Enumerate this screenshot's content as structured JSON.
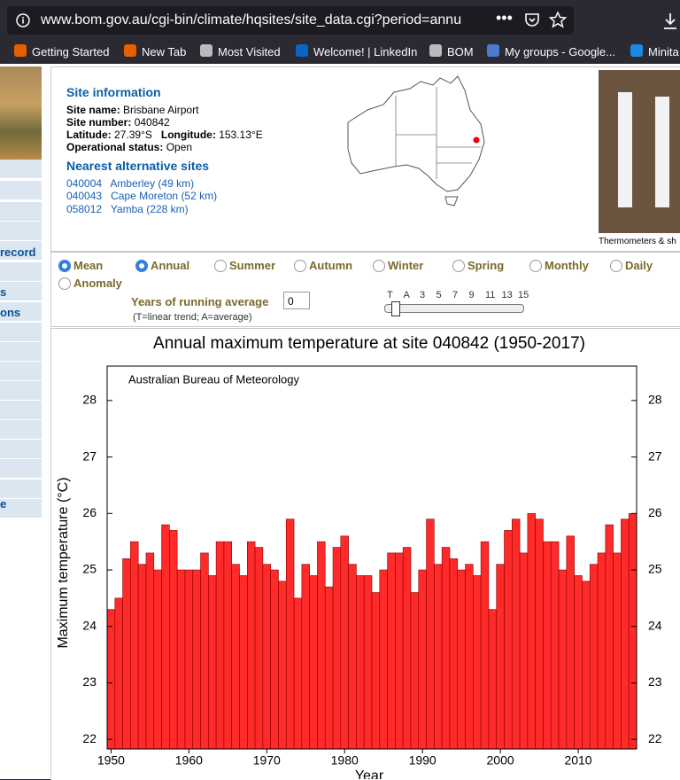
{
  "browser": {
    "url": "www.bom.gov.au/cgi-bin/climate/hqsites/site_data.cgi?period=annu",
    "bookmarks": [
      "Getting Started",
      "New Tab",
      "Most Visited",
      "Welcome! | LinkedIn",
      "BOM",
      "My groups - Google...",
      "Minita"
    ]
  },
  "sidebar": [
    "record",
    "s",
    "ons",
    "e"
  ],
  "site_info": {
    "heading": "Site information",
    "fields": [
      {
        "label": "Site name:",
        "value": "Brisbane Airport"
      },
      {
        "label": "Site number:",
        "value": "040842"
      },
      {
        "label": "Latitude:",
        "value": "27.39°S"
      },
      {
        "label": "Longitude:",
        "value": "153.13°E"
      },
      {
        "label": "Operational status:",
        "value": "Open"
      }
    ],
    "alt_heading": "Nearest alternative sites",
    "alt_sites": [
      {
        "code": "040004",
        "name": "Amberley (49 km)"
      },
      {
        "code": "040043",
        "name": "Cape Moreton (52 km)"
      },
      {
        "code": "058012",
        "name": "Yamba (228 km)"
      }
    ],
    "photo_caption": "Thermometers & sh"
  },
  "controls": {
    "options": [
      "Mean",
      "Annual",
      "Summer",
      "Autumn",
      "Winter",
      "Spring",
      "Monthly",
      "Daily",
      "Anomaly"
    ],
    "checked": [
      true,
      true,
      false,
      false,
      false,
      false,
      false,
      false,
      false
    ],
    "running_label": "Years of running average",
    "running_value": "0",
    "note": "(T=linear trend; A=average)",
    "slider_labels": [
      "T",
      "A",
      "3",
      "5",
      "7",
      "9",
      "11",
      "13",
      "15"
    ]
  },
  "chart_data": {
    "type": "bar",
    "title": "Annual maximum temperature at site 040842 (1950-2017)",
    "annotation": "Australian Bureau of Meteorology",
    "x_label": "Year",
    "y_label": "Maximum temperature (°C)",
    "x": [
      1950,
      1951,
      1952,
      1953,
      1954,
      1955,
      1956,
      1957,
      1958,
      1959,
      1960,
      1961,
      1962,
      1963,
      1964,
      1965,
      1966,
      1967,
      1968,
      1969,
      1970,
      1971,
      1972,
      1973,
      1974,
      1975,
      1976,
      1977,
      1978,
      1979,
      1980,
      1981,
      1982,
      1983,
      1984,
      1985,
      1986,
      1987,
      1988,
      1989,
      1990,
      1991,
      1992,
      1993,
      1994,
      1995,
      1996,
      1997,
      1998,
      1999,
      2000,
      2001,
      2002,
      2003,
      2004,
      2005,
      2006,
      2007,
      2008,
      2009,
      2010,
      2011,
      2012,
      2013,
      2014,
      2015,
      2016,
      2017
    ],
    "values": [
      24.3,
      24.5,
      25.2,
      25.5,
      25.1,
      25.3,
      25.0,
      25.8,
      25.7,
      25.0,
      25.0,
      25.0,
      25.3,
      24.9,
      25.5,
      25.5,
      25.1,
      24.9,
      25.5,
      25.4,
      25.1,
      25.0,
      24.8,
      25.9,
      24.5,
      25.1,
      24.9,
      25.5,
      24.7,
      25.4,
      25.6,
      25.1,
      24.9,
      24.9,
      24.6,
      25.0,
      25.3,
      25.3,
      25.4,
      24.6,
      25.0,
      25.9,
      25.1,
      25.4,
      25.2,
      25.0,
      25.1,
      24.9,
      25.5,
      24.3,
      25.1,
      25.7,
      25.9,
      25.3,
      26.0,
      25.9,
      25.5,
      25.5,
      25.0,
      25.6,
      24.9,
      24.8,
      25.1,
      25.3,
      25.8,
      25.3,
      25.9,
      26.0
    ],
    "color": "#ff2a2a",
    "xlim": [
      1949.5,
      2017.5
    ],
    "xticks": [
      1950,
      1960,
      1970,
      1980,
      1990,
      2000,
      2010
    ],
    "ylim": [
      21.83,
      28.61
    ],
    "yticks": [
      22,
      23,
      24,
      25,
      26,
      27,
      28
    ],
    "y2lim": [
      21.83,
      28.61
    ],
    "y2ticks": [
      22,
      23,
      24,
      25,
      26,
      27,
      28
    ]
  }
}
